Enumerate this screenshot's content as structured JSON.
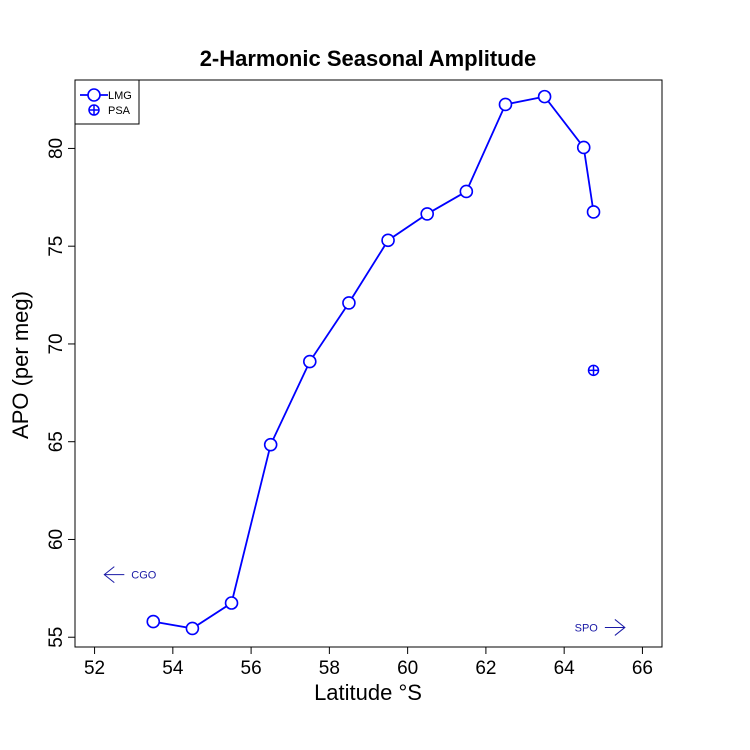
{
  "chart_data": {
    "type": "line",
    "title": "2-Harmonic Seasonal Amplitude",
    "xlabel": "Latitude °S",
    "ylabel": "APO (per meg)",
    "xlim": [
      51.5,
      66.5
    ],
    "ylim": [
      54.5,
      83.5
    ],
    "xticks": [
      52,
      54,
      56,
      58,
      60,
      62,
      64,
      66
    ],
    "yticks": [
      55,
      60,
      65,
      70,
      75,
      80
    ],
    "grid": false,
    "legend_position": "top-left",
    "series": [
      {
        "name": "LMG",
        "marker": "open-circle",
        "line": true,
        "color": "#0000ff",
        "x": [
          53.5,
          54.5,
          55.5,
          56.5,
          57.5,
          58.5,
          59.5,
          60.5,
          61.5,
          62.5,
          63.5,
          64.5,
          64.75
        ],
        "y": [
          55.8,
          55.45,
          56.75,
          64.85,
          69.1,
          72.1,
          75.3,
          76.65,
          77.8,
          82.25,
          82.65,
          80.05,
          76.75
        ]
      },
      {
        "name": "PSA",
        "marker": "circle-plus",
        "line": false,
        "color": "#0000ff",
        "x": [
          64.75
        ],
        "y": [
          68.65
        ]
      }
    ],
    "annotations": [
      {
        "text": "CGO",
        "direction": "left",
        "x": 52.3,
        "y": 58.2
      },
      {
        "text": "SPO",
        "direction": "right",
        "x": 65.5,
        "y": 55.5
      }
    ]
  }
}
